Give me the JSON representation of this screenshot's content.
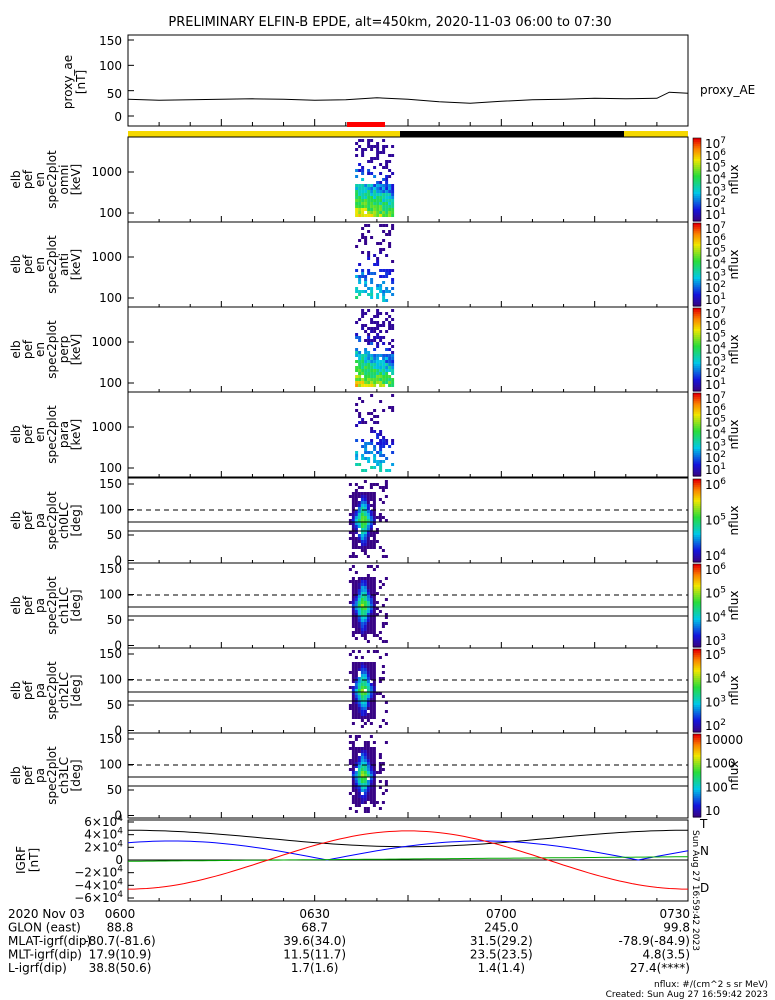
{
  "title": "PRELIMINARY ELFIN-B EPDE, alt=450km, 2020-11-03 06:00 to 07:30",
  "colors": {
    "sunlit": "#f5d800",
    "shadow": "#000000",
    "science": "#ff0000",
    "bx": "#0000ff",
    "by": "#00aa00",
    "bz": "#ff0000",
    "btot": "#000000"
  },
  "chart_data": [
    {
      "type": "line",
      "panel": "proxy_ae",
      "ylabel": [
        "proxy_ae",
        "[nT]"
      ],
      "legend": "proxy_AE",
      "ylim": [
        -10,
        160
      ],
      "yticks": [
        "150",
        "100",
        "50",
        "0"
      ],
      "ytick_values": [
        150,
        100,
        50,
        0
      ],
      "x_minutes": [
        0,
        5,
        10,
        15,
        20,
        25,
        30,
        35,
        40,
        45,
        50,
        55,
        60,
        65,
        70,
        75,
        80,
        85,
        87,
        90
      ],
      "values": [
        33,
        31,
        32,
        33,
        34,
        33,
        31,
        32,
        36,
        33,
        28,
        25,
        29,
        32,
        33,
        35,
        34,
        35,
        47,
        45
      ]
    },
    {
      "type": "heatmap",
      "panel": "elb_pef_en_spec2plot_omni",
      "ylabel": [
        "elb",
        "pef",
        "en",
        "spec2plot",
        "omni",
        "[keV]"
      ],
      "yticks": [
        "1000",
        "100"
      ],
      "colorbar": {
        "label": "nflux",
        "ticks": [
          "10^7",
          "10^6",
          "10^5",
          "10^4",
          "10^3",
          "10^2",
          "10^1"
        ]
      }
    },
    {
      "type": "heatmap",
      "panel": "elb_pef_en_spec2plot_anti",
      "ylabel": [
        "elb",
        "pef",
        "en",
        "spec2plot",
        "anti",
        "[keV]"
      ],
      "yticks": [
        "1000",
        "100"
      ],
      "colorbar": {
        "label": "nflux",
        "ticks": [
          "10^7",
          "10^6",
          "10^5",
          "10^4",
          "10^3",
          "10^2",
          "10^1"
        ]
      }
    },
    {
      "type": "heatmap",
      "panel": "elb_pef_en_spec2plot_perp",
      "ylabel": [
        "elb",
        "pef",
        "en",
        "spec2plot",
        "perp",
        "[keV]"
      ],
      "yticks": [
        "1000",
        "100"
      ],
      "colorbar": {
        "label": "nflux",
        "ticks": [
          "10^7",
          "10^6",
          "10^5",
          "10^4",
          "10^3",
          "10^2",
          "10^1"
        ]
      }
    },
    {
      "type": "heatmap",
      "panel": "elb_pef_en_spec2plot_para",
      "ylabel": [
        "elb",
        "pef",
        "en",
        "spec2plot",
        "para",
        "[keV]"
      ],
      "yticks": [
        "1000",
        "100"
      ],
      "colorbar": {
        "label": "nflux",
        "ticks": [
          "10^7",
          "10^6",
          "10^5",
          "10^4",
          "10^3",
          "10^2",
          "10^1"
        ]
      }
    },
    {
      "type": "heatmap",
      "panel": "elb_pef_pa_spec2plot_ch0LC",
      "ylabel": [
        "elb",
        "pef",
        "pa",
        "spec2plot",
        "ch0LC",
        "[deg]"
      ],
      "yticks": [
        "150",
        "100",
        "50",
        "0"
      ],
      "colorbar": {
        "label": "nflux",
        "ticks": [
          "10^6",
          "10^5",
          "10^4"
        ]
      }
    },
    {
      "type": "heatmap",
      "panel": "elb_pef_pa_spec2plot_ch1LC",
      "ylabel": [
        "elb",
        "pef",
        "pa",
        "spec2plot",
        "ch1LC",
        "[deg]"
      ],
      "yticks": [
        "150",
        "100",
        "50",
        "0"
      ],
      "colorbar": {
        "label": "nflux",
        "ticks": [
          "10^6",
          "10^5",
          "10^4",
          "10^3"
        ]
      }
    },
    {
      "type": "heatmap",
      "panel": "elb_pef_pa_spec2plot_ch2LC",
      "ylabel": [
        "elb",
        "pef",
        "pa",
        "spec2plot",
        "ch2LC",
        "[deg]"
      ],
      "yticks": [
        "150",
        "100",
        "50",
        "0"
      ],
      "colorbar": {
        "label": "nflux",
        "ticks": [
          "10^5",
          "10^4",
          "10^3",
          "10^2"
        ]
      }
    },
    {
      "type": "heatmap",
      "panel": "elb_pef_pa_spec2plot_ch3LC",
      "ylabel": [
        "elb",
        "pef",
        "pa",
        "spec2plot",
        "ch3LC",
        "[deg]"
      ],
      "yticks": [
        "150",
        "100",
        "50",
        "0"
      ],
      "colorbar": {
        "label": "nflux",
        "ticks": [
          "10000",
          "1000",
          "100",
          "10"
        ]
      }
    },
    {
      "type": "line",
      "panel": "IGRF",
      "ylabel": [
        "IGRF",
        "[nT]"
      ],
      "yticks": [
        "6×10^4",
        "4×10^4",
        "2×10^4",
        "0",
        "−2×10^4",
        "−4×10^4",
        "−6×10^4"
      ],
      "legend": [
        "T",
        "N",
        "D"
      ],
      "stamp": "Sun Aug 27 16:59:42 2023"
    }
  ],
  "orbit_table": {
    "rows": [
      {
        "label": "2020 Nov 03",
        "values": [
          "0600",
          "0630",
          "0700",
          "0730"
        ]
      },
      {
        "label": "GLON (east)",
        "values": [
          "88.8",
          "68.7",
          "245.0",
          "99.8"
        ]
      },
      {
        "label": "MLAT-igrf(dip)",
        "values": [
          "-80.7(-81.6)",
          "39.6(34.0)",
          "31.5(29.2)",
          "-78.9(-84.9)"
        ]
      },
      {
        "label": "MLT-igrf(dip)",
        "values": [
          "17.9(10.9)",
          "11.5(11.7)",
          "23.5(23.5)",
          "4.8(3.5)"
        ]
      },
      {
        "label": "L-igrf(dip)",
        "values": [
          "38.8(50.6)",
          "1.7(1.6)",
          "1.4(1.4)",
          "27.4(****)"
        ]
      }
    ],
    "row_labels_display": [
      "2020 Nov 03",
      "GLON (east)",
      "MLAT-igrf(dip)",
      "MLT-igrf(dip)",
      "L-igrf(dip)"
    ]
  },
  "footer": {
    "units": "nflux: #/(cm^2 s sr MeV)",
    "created": "Created: Sun Aug 27 16:59:42 2023"
  }
}
